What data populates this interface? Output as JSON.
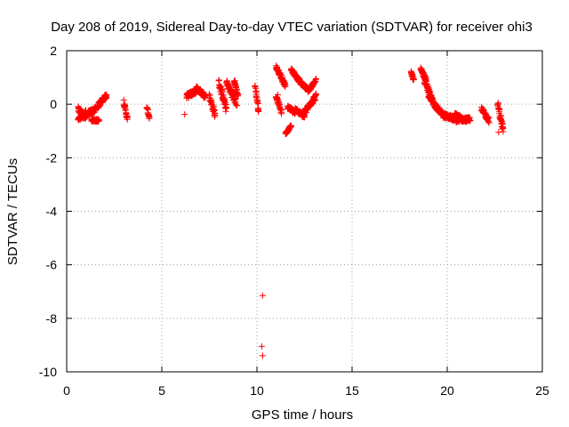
{
  "chart_data": {
    "type": "scatter",
    "title": "Day 208 of 2019, Sidereal Day-to-day VTEC variation (SDTVAR) for receiver ohi3",
    "xlabel": "GPS time / hours",
    "ylabel": "SDTVAR / TECUs",
    "xlim": [
      0,
      25
    ],
    "ylim": [
      -10,
      2
    ],
    "xticks": [
      0,
      5,
      10,
      15,
      20,
      25
    ],
    "yticks": [
      -10,
      -8,
      -6,
      -4,
      -2,
      0,
      2
    ],
    "xtick_labels": [
      "0",
      "5",
      "10",
      "15",
      "20",
      "25"
    ],
    "ytick_labels": [
      "-10",
      "-8",
      "-6",
      "-4",
      "-2",
      "0",
      "2"
    ],
    "grid": true,
    "marker": "+",
    "series_color": "#ff0000",
    "series": [
      {
        "name": "SDTVAR",
        "segments": [
          {
            "x": [
              0.6,
              1.0
            ],
            "y": [
              -0.2,
              -0.5
            ],
            "spread": 0.25
          },
          {
            "x": [
              0.6,
              1.0
            ],
            "y": [
              -0.6,
              -0.3
            ],
            "spread": 0.15
          },
          {
            "x": [
              1.0,
              1.5
            ],
            "y": [
              -0.4,
              -0.2
            ],
            "spread": 0.2
          },
          {
            "x": [
              1.3,
              1.7
            ],
            "y": [
              -0.6,
              -0.6
            ],
            "spread": 0.1
          },
          {
            "x": [
              1.6,
              2.1
            ],
            "y": [
              -0.1,
              0.35
            ],
            "spread": 0.2
          },
          {
            "x": [
              3.0,
              3.2
            ],
            "y": [
              0.1,
              -0.6
            ],
            "spread": 0.2
          },
          {
            "x": [
              4.2,
              4.35
            ],
            "y": [
              -0.1,
              -0.5
            ],
            "spread": 0.15
          },
          {
            "x": [
              6.3,
              6.8
            ],
            "y": [
              0.3,
              0.5
            ],
            "spread": 0.2
          },
          {
            "x": [
              6.8,
              7.3
            ],
            "y": [
              0.6,
              0.3
            ],
            "spread": 0.2
          },
          {
            "x": [
              7.5,
              7.8
            ],
            "y": [
              0.3,
              -0.4
            ],
            "spread": 0.25
          },
          {
            "x": [
              8.0,
              8.4
            ],
            "y": [
              0.8,
              -0.2
            ],
            "spread": 0.3
          },
          {
            "x": [
              8.4,
              8.9
            ],
            "y": [
              0.8,
              0.1
            ],
            "spread": 0.3
          },
          {
            "x": [
              8.8,
              9.0
            ],
            "y": [
              0.9,
              0.3
            ],
            "spread": 0.2
          },
          {
            "x": [
              9.9,
              10.1
            ],
            "y": [
              0.7,
              -0.3
            ],
            "spread": 0.2
          },
          {
            "x": [
              11.0,
              11.5
            ],
            "y": [
              1.4,
              0.7
            ],
            "spread": 0.15
          },
          {
            "x": [
              11.0,
              11.3
            ],
            "y": [
              0.3,
              -0.3
            ],
            "spread": 0.15
          },
          {
            "x": [
              11.5,
              11.8
            ],
            "y": [
              -1.1,
              -0.8
            ],
            "spread": 0.1
          },
          {
            "x": [
              11.6,
              12.0
            ],
            "y": [
              -0.1,
              -0.3
            ],
            "spread": 0.15
          },
          {
            "x": [
              11.8,
              12.3
            ],
            "y": [
              1.3,
              0.8
            ],
            "spread": 0.15
          },
          {
            "x": [
              12.3,
              12.7
            ],
            "y": [
              0.8,
              0.55
            ],
            "spread": 0.12
          },
          {
            "x": [
              12.7,
              13.1
            ],
            "y": [
              0.5,
              0.9
            ],
            "spread": 0.12
          },
          {
            "x": [
              12.0,
              12.5
            ],
            "y": [
              -0.2,
              -0.45
            ],
            "spread": 0.15
          },
          {
            "x": [
              12.4,
              12.8
            ],
            "y": [
              -0.4,
              0.0
            ],
            "spread": 0.2
          },
          {
            "x": [
              12.8,
              13.1
            ],
            "y": [
              0.0,
              0.3
            ],
            "spread": 0.2
          },
          {
            "x": [
              18.1,
              18.25
            ],
            "y": [
              1.2,
              0.9
            ],
            "spread": 0.15
          },
          {
            "x": [
              18.6,
              18.9
            ],
            "y": [
              1.3,
              0.9
            ],
            "spread": 0.15
          },
          {
            "x": [
              18.8,
              19.2
            ],
            "y": [
              0.9,
              0.2
            ],
            "spread": 0.25
          },
          {
            "x": [
              19.0,
              19.4
            ],
            "y": [
              0.4,
              -0.1
            ],
            "spread": 0.2
          },
          {
            "x": [
              19.4,
              19.9
            ],
            "y": [
              -0.1,
              -0.5
            ],
            "spread": 0.2
          },
          {
            "x": [
              19.9,
              20.5
            ],
            "y": [
              -0.4,
              -0.6
            ],
            "spread": 0.2
          },
          {
            "x": [
              20.5,
              21.2
            ],
            "y": [
              -0.6,
              -0.55
            ],
            "spread": 0.15
          },
          {
            "x": [
              20.4,
              21.0
            ],
            "y": [
              -0.4,
              -0.6
            ],
            "spread": 0.15
          },
          {
            "x": [
              21.8,
              22.2
            ],
            "y": [
              -0.2,
              -0.6
            ],
            "spread": 0.2
          },
          {
            "x": [
              22.65,
              22.95
            ],
            "y": [
              0.0,
              -1.0
            ],
            "spread": 0.3
          }
        ],
        "points": [
          {
            "x": 6.2,
            "y": -0.38
          },
          {
            "x": 10.3,
            "y": -7.15
          },
          {
            "x": 10.25,
            "y": -9.05
          },
          {
            "x": 10.3,
            "y": -9.4
          },
          {
            "x": 8.95,
            "y": -0.05
          },
          {
            "x": 11.1,
            "y": 0.35
          },
          {
            "x": 22.7,
            "y": -1.05
          }
        ]
      }
    ]
  }
}
